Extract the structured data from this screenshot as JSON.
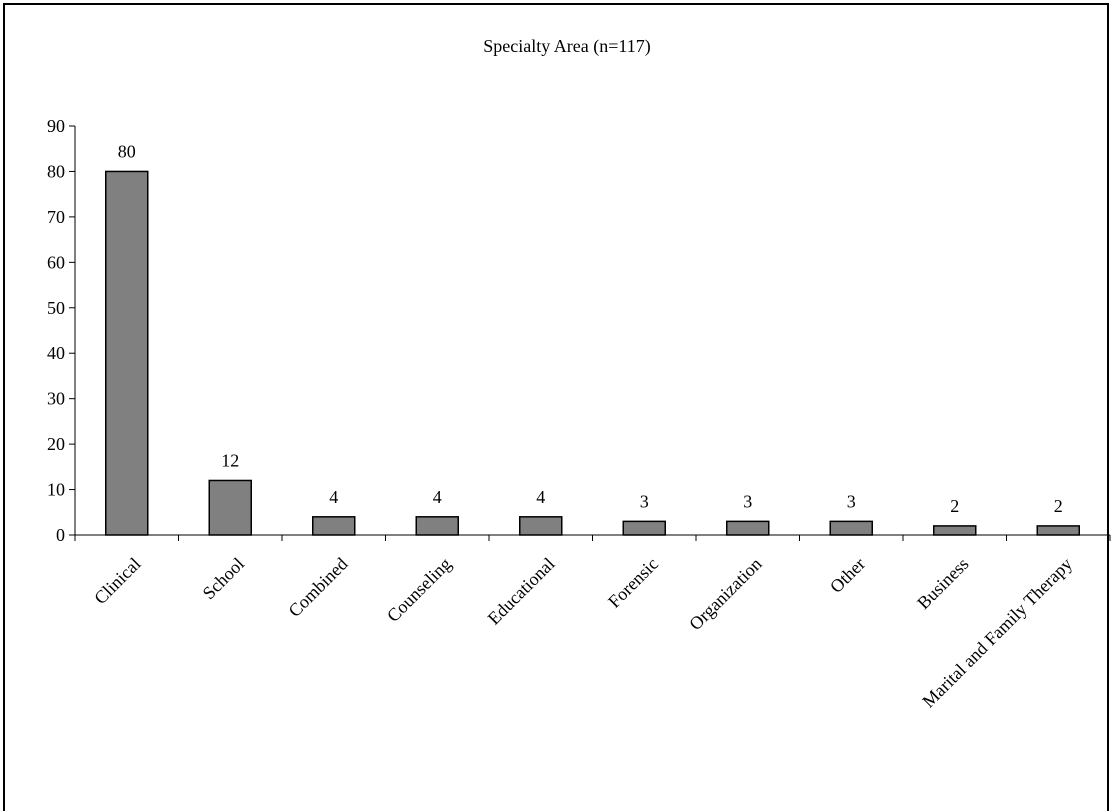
{
  "chart_data": {
    "type": "bar",
    "title": "Specialty Area (n=117)",
    "xlabel": "",
    "ylabel": "",
    "categories": [
      "Clinical",
      "School",
      "Combined",
      "Counseling",
      "Educational",
      "Forensic",
      "Organization",
      "Other",
      "Business",
      "Marital and Family Therapy"
    ],
    "values": [
      80,
      12,
      4,
      4,
      4,
      3,
      3,
      3,
      2,
      2
    ],
    "ylim": [
      0,
      90
    ],
    "yticks": [
      0,
      10,
      20,
      30,
      40,
      50,
      60,
      70,
      80,
      90
    ],
    "data_labels": true,
    "grid": false,
    "legend": "none",
    "bar_color": "#808080",
    "bar_edge_color": "#000000"
  }
}
